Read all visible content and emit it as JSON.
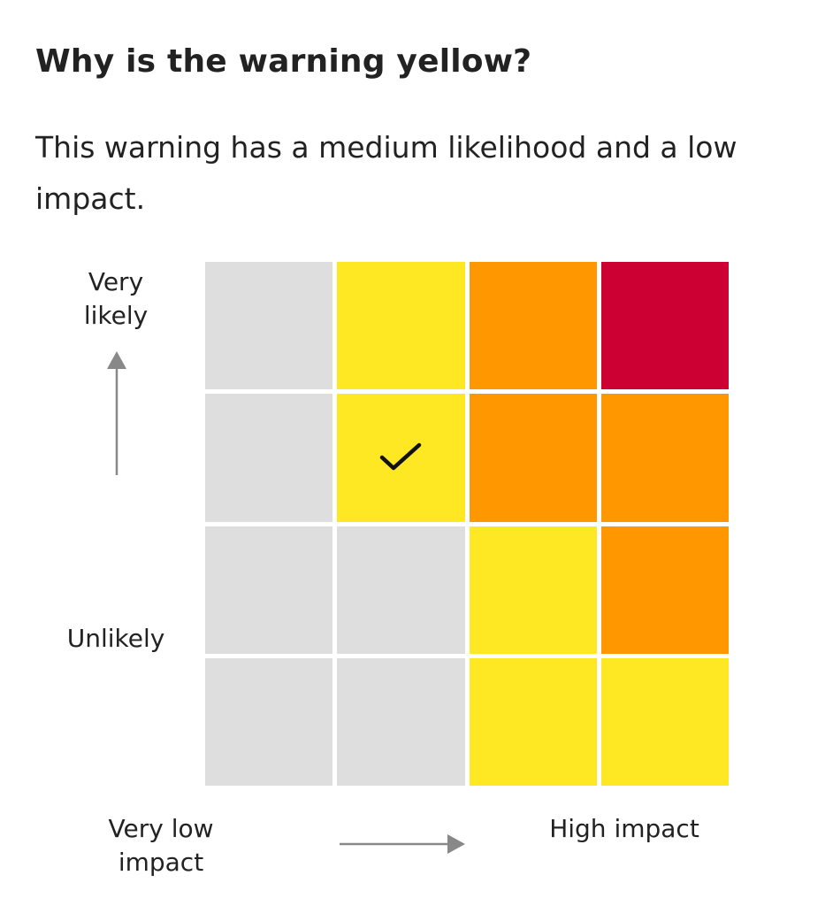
{
  "heading": "Why is the warning yellow?",
  "description": "This warning has a medium likelihood and a low impact.",
  "axis": {
    "y_top_label": "Very likely",
    "y_bottom_label": "Unlikely",
    "x_left_label": "Very low impact",
    "x_right_label": "High impact"
  },
  "colors": {
    "grey": "#dedede",
    "yellow": "#fee723",
    "amber": "#ff9800",
    "red": "#cc0033",
    "arrow": "#888888",
    "check": "#111111"
  },
  "matrix": {
    "rows_top_to_bottom": [
      [
        "grey",
        "yellow",
        "amber",
        "red"
      ],
      [
        "grey",
        "yellow",
        "amber",
        "amber"
      ],
      [
        "grey",
        "grey",
        "yellow",
        "amber"
      ],
      [
        "grey",
        "grey",
        "yellow",
        "yellow"
      ]
    ],
    "selected": {
      "row": 1,
      "col": 1
    },
    "selected_icon": "checkmark-icon"
  }
}
